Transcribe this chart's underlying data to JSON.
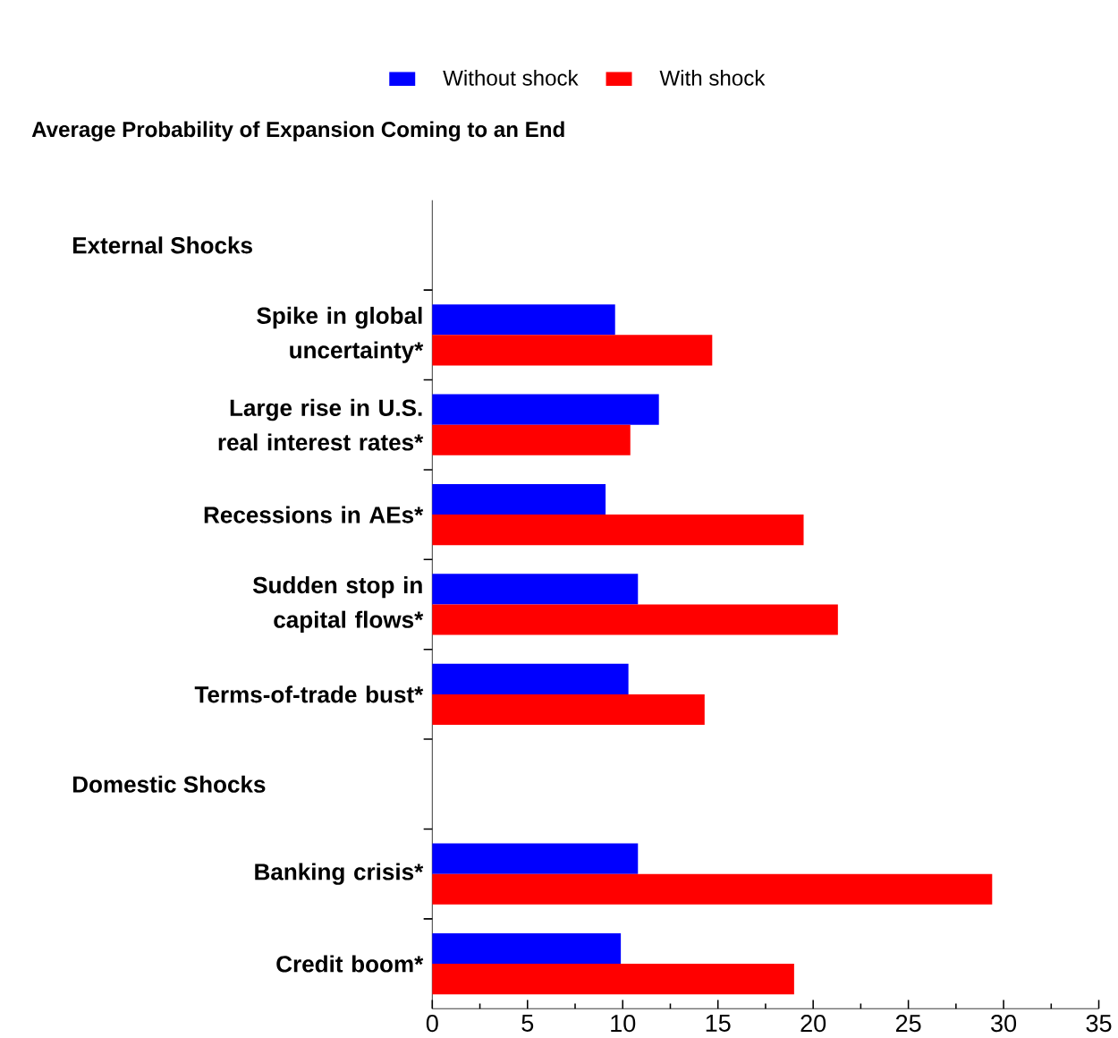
{
  "chart_data": {
    "type": "bar",
    "orientation": "horizontal",
    "title": "Average Probability of Expansion Coming to an End",
    "annotations": [
      "External Shocks",
      "Domestic Shocks"
    ],
    "categories": [
      null,
      "Spike in global uncertainty*",
      "Large rise in U.S. real interest rates*",
      "Recessions in AEs*",
      "Sudden stop in capital flows*",
      "Terms-of-trade bust*",
      null,
      "Banking crisis*",
      "Credit boom*"
    ],
    "series": [
      {
        "name": "Without shock",
        "color": "#0000ff",
        "values": [
          null,
          9.6,
          11.9,
          9.1,
          10.8,
          10.3,
          null,
          10.8,
          9.9
        ]
      },
      {
        "name": "With shock",
        "color": "#ff0000",
        "values": [
          null,
          14.7,
          10.4,
          19.5,
          21.3,
          14.3,
          null,
          29.4,
          19.0
        ]
      }
    ],
    "xlim": [
      0,
      35
    ],
    "xticks": [
      0,
      5,
      10,
      15,
      20,
      25,
      30,
      35
    ],
    "legend": "top",
    "grid": false
  }
}
